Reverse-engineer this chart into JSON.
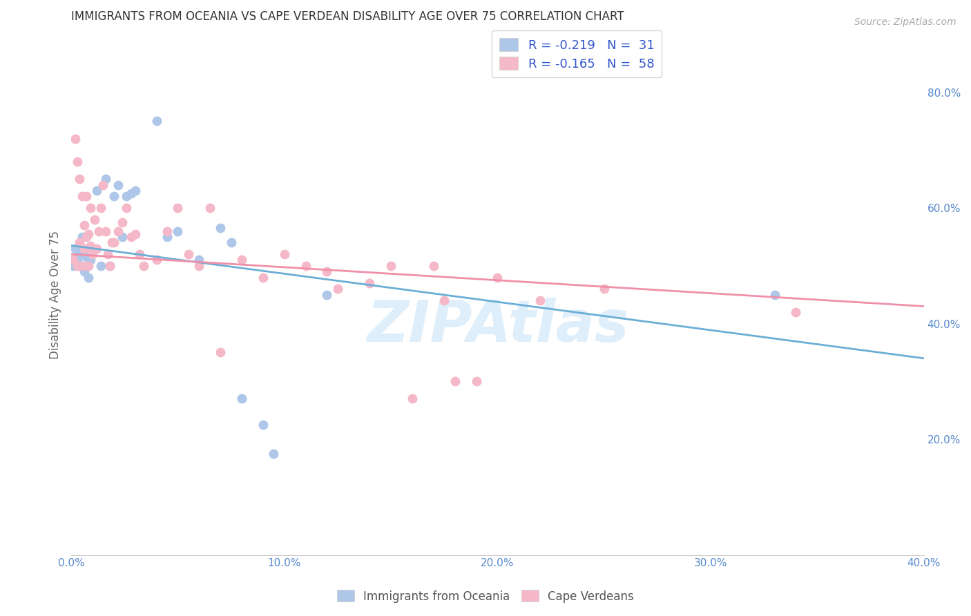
{
  "title": "IMMIGRANTS FROM OCEANIA VS CAPE VERDEAN DISABILITY AGE OVER 75 CORRELATION CHART",
  "source": "Source: ZipAtlas.com",
  "ylabel": "Disability Age Over 75",
  "xlim": [
    0.0,
    0.4
  ],
  "ylim": [
    0.0,
    0.9
  ],
  "xtick_vals": [
    0.0,
    0.1,
    0.2,
    0.3,
    0.4
  ],
  "xtick_labels": [
    "0.0%",
    "10.0%",
    "20.0%",
    "30.0%",
    "40.0%"
  ],
  "ytick_vals_right": [
    0.2,
    0.4,
    0.6,
    0.8
  ],
  "ytick_labels_right": [
    "20.0%",
    "40.0%",
    "60.0%",
    "80.0%"
  ],
  "oceania_color": "#aec6e8",
  "cape_color": "#f4b8c8",
  "oceania_line_color": "#6baed6",
  "cape_line_color": "#f090a8",
  "legend_text_color": "#3355cc",
  "watermark_color": "#d0e8f8",
  "background_color": "#ffffff",
  "grid_color": "#cccccc",
  "oceania_x": [
    0.001,
    0.002,
    0.003,
    0.004,
    0.005,
    0.006,
    0.007,
    0.008,
    0.009,
    0.01,
    0.012,
    0.014,
    0.016,
    0.018,
    0.02,
    0.022,
    0.024,
    0.026,
    0.028,
    0.03,
    0.04,
    0.045,
    0.05,
    0.06,
    0.07,
    0.075,
    0.08,
    0.09,
    0.095,
    0.12,
    0.33
  ],
  "oceania_y": [
    0.5,
    0.53,
    0.51,
    0.52,
    0.55,
    0.49,
    0.515,
    0.48,
    0.51,
    0.53,
    0.63,
    0.5,
    0.65,
    0.5,
    0.62,
    0.64,
    0.55,
    0.62,
    0.625,
    0.63,
    0.75,
    0.55,
    0.56,
    0.51,
    0.565,
    0.54,
    0.27,
    0.225,
    0.175,
    0.45,
    0.45
  ],
  "cape_x": [
    0.001,
    0.002,
    0.003,
    0.003,
    0.004,
    0.004,
    0.005,
    0.005,
    0.006,
    0.006,
    0.007,
    0.007,
    0.008,
    0.008,
    0.009,
    0.009,
    0.01,
    0.011,
    0.012,
    0.013,
    0.014,
    0.015,
    0.016,
    0.017,
    0.018,
    0.019,
    0.02,
    0.022,
    0.024,
    0.026,
    0.028,
    0.03,
    0.032,
    0.034,
    0.04,
    0.045,
    0.05,
    0.055,
    0.06,
    0.065,
    0.07,
    0.08,
    0.09,
    0.1,
    0.11,
    0.12,
    0.125,
    0.14,
    0.15,
    0.16,
    0.17,
    0.175,
    0.18,
    0.19,
    0.2,
    0.22,
    0.25,
    0.34
  ],
  "cape_y": [
    0.51,
    0.72,
    0.68,
    0.5,
    0.65,
    0.54,
    0.5,
    0.62,
    0.57,
    0.53,
    0.55,
    0.62,
    0.555,
    0.5,
    0.6,
    0.535,
    0.52,
    0.58,
    0.53,
    0.56,
    0.6,
    0.64,
    0.56,
    0.52,
    0.5,
    0.54,
    0.54,
    0.56,
    0.575,
    0.6,
    0.55,
    0.555,
    0.52,
    0.5,
    0.51,
    0.56,
    0.6,
    0.52,
    0.5,
    0.6,
    0.35,
    0.51,
    0.48,
    0.52,
    0.5,
    0.49,
    0.46,
    0.47,
    0.5,
    0.27,
    0.5,
    0.44,
    0.3,
    0.3,
    0.48,
    0.44,
    0.46,
    0.42
  ]
}
